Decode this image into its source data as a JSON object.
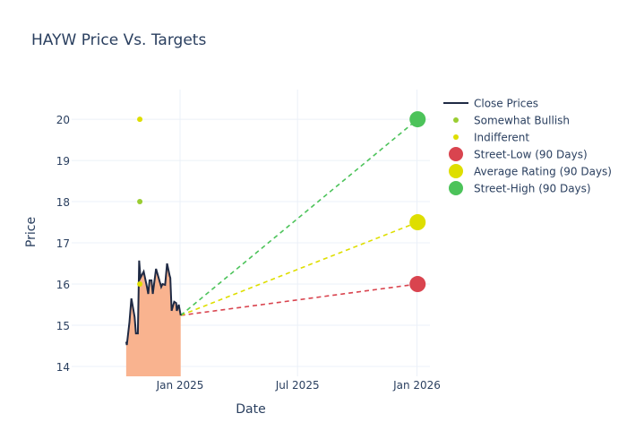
{
  "chart_data": {
    "type": "line",
    "title": "HAYW Price Vs. Targets",
    "xlabel": "Date",
    "ylabel": "Price",
    "xlim": [
      "2024-07-18",
      "2026-01-21"
    ],
    "ylim": [
      13.76,
      20.72
    ],
    "x_ticks": [
      {
        "date": "2025-01-01",
        "label": "Jan 2025"
      },
      {
        "date": "2025-07-01",
        "label": "Jul 2025"
      },
      {
        "date": "2026-01-01",
        "label": "Jan 2026"
      }
    ],
    "y_ticks": [
      14,
      15,
      16,
      17,
      18,
      19,
      20
    ],
    "grid": true,
    "legend_position": "right",
    "series": [
      {
        "name": "Close Prices",
        "kind": "line-area",
        "color": "#1f2a44",
        "fill": "#f9b38f",
        "x": [
          "2024-10-10",
          "2024-10-11",
          "2024-10-15",
          "2024-10-18",
          "2024-10-23",
          "2024-10-25",
          "2024-10-28",
          "2024-10-30",
          "2024-11-01",
          "2024-11-06",
          "2024-11-11",
          "2024-11-13",
          "2024-11-15",
          "2024-11-18",
          "2024-11-20",
          "2024-11-25",
          "2024-11-29",
          "2024-12-03",
          "2024-12-05",
          "2024-12-09",
          "2024-12-12",
          "2024-12-16",
          "2024-12-17",
          "2024-12-19",
          "2024-12-23",
          "2024-12-26",
          "2024-12-27",
          "2024-12-30",
          "2025-01-02"
        ],
        "y": [
          14.6,
          14.52,
          15.07,
          15.65,
          15.2,
          14.8,
          14.8,
          16.57,
          16.15,
          16.3,
          15.93,
          15.76,
          16.09,
          16.09,
          15.76,
          16.37,
          16.15,
          15.93,
          16.0,
          15.98,
          16.5,
          16.2,
          16.15,
          15.35,
          15.57,
          15.54,
          15.35,
          15.5,
          15.24
        ]
      },
      {
        "name": "Somewhat Bullish",
        "kind": "marker",
        "color": "#9acd32",
        "x": [
          "2024-10-31"
        ],
        "y": [
          18
        ]
      },
      {
        "name": "Indifferent",
        "kind": "marker",
        "color": "#dede00",
        "x": [
          "2024-10-31",
          "2024-10-31"
        ],
        "y": [
          20,
          16
        ]
      },
      {
        "name": "Street-Low (90 Days)",
        "kind": "target",
        "color": "#d9444f",
        "x": [
          "2025-01-02",
          "2026-01-02"
        ],
        "y": [
          15.24,
          16
        ]
      },
      {
        "name": "Average Rating (90 Days)",
        "kind": "target",
        "color": "#dede00",
        "x": [
          "2025-01-02",
          "2026-01-02"
        ],
        "y": [
          15.24,
          17.5
        ]
      },
      {
        "name": "Street-High (90 Days)",
        "kind": "target",
        "color": "#4cc35a",
        "x": [
          "2025-01-02",
          "2026-01-02"
        ],
        "y": [
          15.24,
          20
        ]
      }
    ]
  }
}
